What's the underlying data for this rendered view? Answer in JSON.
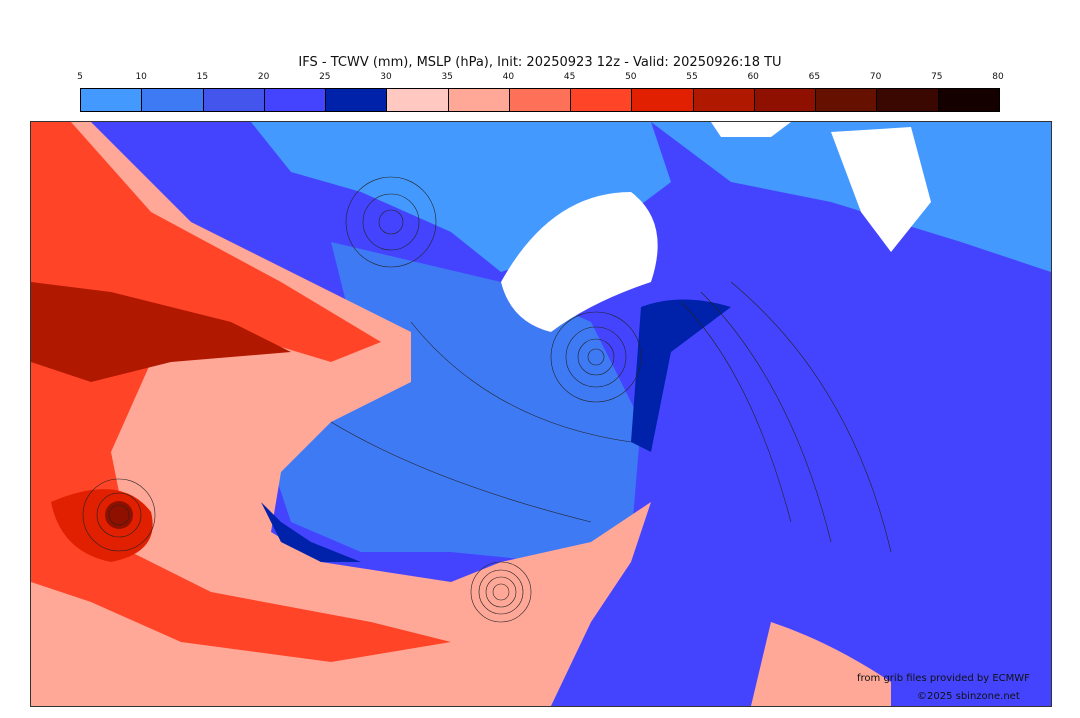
{
  "title": "IFS - TCWV (mm), MSLP (hPa), Init: 20250923 12z - Valid: 20250926:18 TU",
  "colorbar": {
    "ticks": [
      "5",
      "10",
      "15",
      "20",
      "25",
      "30",
      "35",
      "40",
      "45",
      "50",
      "55",
      "60",
      "65",
      "70",
      "75",
      "80"
    ],
    "colors": [
      "#4499ff",
      "#3f7af5",
      "#4455ee",
      "#4444ff",
      "#0022aa",
      "#ffc8c0",
      "#ffa898",
      "#ff7058",
      "#ff4428",
      "#e02000",
      "#b01800",
      "#901000",
      "#661000",
      "#3a0800",
      "#150000"
    ]
  },
  "credits": {
    "source": "from grib files provided by ECMWF",
    "copyright": "©2025 sbinzone.net"
  }
}
